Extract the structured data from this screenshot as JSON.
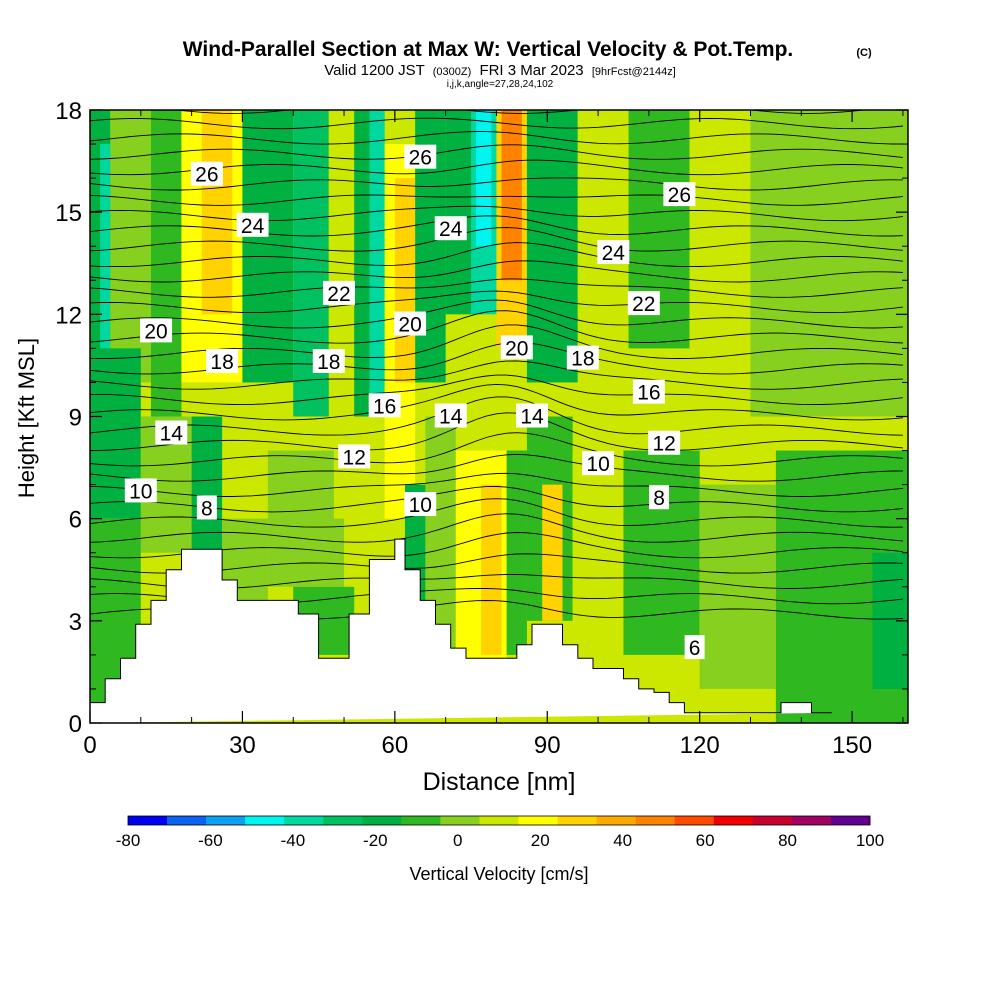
{
  "chart_data": {
    "type": "heatmap",
    "title": "Wind-Parallel Section at Max W: Vertical Velocity & Pot.Temp.",
    "title_mark": "(C)",
    "subtitle_parts": [
      "Valid 1200 JST",
      "(0300Z)",
      "FRI 3 Mar 2023",
      "[9hrFcst@2144z]"
    ],
    "subtitle2": "i,j,k,angle=27,28,24,102",
    "xlabel": "Distance [nm]",
    "ylabel": "Height [Kft MSL]",
    "xlim": [
      0,
      161
    ],
    "ylim": [
      0,
      18
    ],
    "xticks": [
      "0",
      "30",
      "60",
      "90",
      "120",
      "150"
    ],
    "yticks": [
      "0",
      "3",
      "6",
      "9",
      "12",
      "15",
      "18"
    ],
    "colorbar": {
      "label": "Vertical Velocity [cm/s]",
      "tick_labels": [
        "-80",
        "-60",
        "-40",
        "-20",
        "0",
        "20",
        "40",
        "60",
        "80",
        "100"
      ],
      "levels": [
        -80,
        -70,
        -60,
        -50,
        -40,
        -30,
        -20,
        -10,
        0,
        10,
        20,
        30,
        40,
        50,
        60,
        70,
        80,
        90,
        100
      ],
      "colors": [
        "#0000f0",
        "#0a64f0",
        "#0ca0f0",
        "#00f5f0",
        "#00d8a0",
        "#00c060",
        "#00b040",
        "#30b820",
        "#88d020",
        "#cce800",
        "#ffff00",
        "#ffd200",
        "#ffaa00",
        "#ff8200",
        "#ff4a00",
        "#f00000",
        "#c80030",
        "#a00060",
        "#600090"
      ]
    },
    "theta_labels": [
      {
        "value": "26",
        "x": 23,
        "y": 16.1
      },
      {
        "value": "24",
        "x": 32,
        "y": 14.6
      },
      {
        "value": "22",
        "x": 49,
        "y": 12.6
      },
      {
        "value": "20",
        "x": 13,
        "y": 11.5
      },
      {
        "value": "18",
        "x": 26,
        "y": 10.6
      },
      {
        "value": "18",
        "x": 47,
        "y": 10.6
      },
      {
        "value": "14",
        "x": 16,
        "y": 8.5
      },
      {
        "value": "16",
        "x": 58,
        "y": 9.3
      },
      {
        "value": "12",
        "x": 52,
        "y": 7.8
      },
      {
        "value": "10",
        "x": 10,
        "y": 6.8
      },
      {
        "value": "8",
        "x": 23,
        "y": 6.3
      },
      {
        "value": "10",
        "x": 65,
        "y": 6.4
      },
      {
        "value": "26",
        "x": 65,
        "y": 16.6
      },
      {
        "value": "24",
        "x": 71,
        "y": 14.5
      },
      {
        "value": "20",
        "x": 63,
        "y": 11.7
      },
      {
        "value": "14",
        "x": 71,
        "y": 9.0
      },
      {
        "value": "14",
        "x": 87,
        "y": 9.0
      },
      {
        "value": "20",
        "x": 84,
        "y": 11.0
      },
      {
        "value": "18",
        "x": 97,
        "y": 10.7
      },
      {
        "value": "26",
        "x": 116,
        "y": 15.5
      },
      {
        "value": "24",
        "x": 103,
        "y": 13.8
      },
      {
        "value": "22",
        "x": 109,
        "y": 12.3
      },
      {
        "value": "16",
        "x": 110,
        "y": 9.7
      },
      {
        "value": "12",
        "x": 113,
        "y": 8.2
      },
      {
        "value": "10",
        "x": 100,
        "y": 7.6
      },
      {
        "value": "8",
        "x": 112,
        "y": 6.6
      },
      {
        "value": "6",
        "x": 119,
        "y": 2.2
      }
    ],
    "terrain": {
      "x": [
        0,
        3,
        3,
        6,
        6,
        9,
        9,
        12,
        12,
        15,
        15,
        18,
        18,
        20,
        20,
        26,
        26,
        29,
        29,
        35,
        35,
        38,
        38,
        41,
        41,
        45,
        45,
        51,
        51,
        55,
        55,
        60,
        60,
        62,
        62,
        65,
        65,
        68,
        68,
        71,
        71,
        74,
        74,
        77,
        77,
        84,
        84,
        87,
        87,
        93,
        93,
        96,
        96,
        99,
        99,
        102,
        102,
        105,
        105,
        108,
        108,
        111,
        111,
        114,
        114,
        117,
        117,
        120,
        120,
        136,
        136,
        142,
        142,
        146,
        146,
        161
      ],
      "y": [
        0.6,
        0.6,
        1.3,
        1.3,
        1.9,
        1.9,
        2.9,
        2.9,
        3.6,
        3.6,
        4.5,
        4.5,
        5.1,
        5.1,
        5.1,
        5.1,
        4.2,
        4.2,
        3.6,
        3.6,
        3.6,
        3.6,
        3.6,
        3.6,
        3.2,
        3.2,
        1.9,
        1.9,
        3.2,
        3.2,
        4.8,
        4.8,
        5.4,
        5.4,
        4.5,
        4.5,
        3.6,
        3.6,
        2.9,
        2.9,
        2.2,
        2.2,
        1.9,
        1.9,
        1.9,
        1.9,
        2.3,
        2.3,
        2.9,
        2.9,
        2.3,
        2.3,
        1.9,
        1.9,
        1.6,
        1.6,
        1.6,
        1.6,
        1.3,
        1.3,
        1.0,
        1.0,
        0.9,
        0.9,
        0.6,
        0.6,
        0.3,
        0.3,
        0.3,
        0.3,
        0.6,
        0.6,
        0.3,
        0.3,
        0.3
      ]
    }
  }
}
